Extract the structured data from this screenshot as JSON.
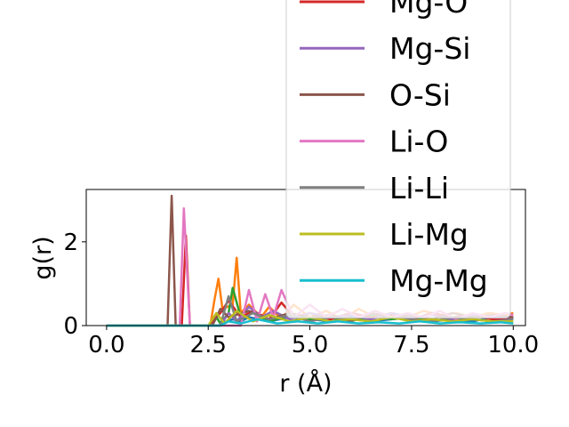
{
  "chart_data": {
    "type": "line",
    "xlabel": "r (Å)",
    "ylabel": "g(r)",
    "xlim": [
      -0.5,
      10.3
    ],
    "ylim": [
      0,
      3.25
    ],
    "x_ticks": [
      "0.0",
      "2.5",
      "5.0",
      "7.5",
      "10.0"
    ],
    "x_tick_values": [
      0,
      2.5,
      5,
      7.5,
      10
    ],
    "y_ticks": [
      "0",
      "2"
    ],
    "y_tick_values": [
      0,
      2
    ],
    "grid": false,
    "legend_placement": "upper right, extending above the plot area",
    "series": [
      {
        "name": "",
        "color": "#1f77b4",
        "x": [
          0,
          2.5,
          2.6,
          2.7,
          2.8,
          3.1,
          3.3,
          3.5,
          4.0,
          4.5,
          5.0,
          5.5,
          6.0,
          6.5,
          7.0,
          7.5,
          8.0,
          8.5,
          9.0,
          9.5,
          10.0
        ],
        "y": [
          0,
          0,
          0.05,
          0.2,
          0.05,
          0.15,
          0.1,
          0.2,
          0.1,
          0.2,
          0.15,
          0.1,
          0.2,
          0.1,
          0.15,
          0.2,
          0.1,
          0.15,
          0.1,
          0.2,
          0.15
        ]
      },
      {
        "name": "",
        "color": "#ff7f0e",
        "x": [
          0,
          2.55,
          2.65,
          2.75,
          2.85,
          3.1,
          3.2,
          3.3,
          3.5,
          3.8,
          4.0,
          4.3,
          4.6,
          5.0,
          5.4,
          5.8,
          6.2,
          6.6,
          7.0,
          7.4,
          7.8,
          8.2,
          8.6,
          9.0,
          9.4,
          9.8,
          10.0
        ],
        "y": [
          0,
          0,
          0.6,
          1.12,
          0.4,
          0.5,
          1.62,
          0.3,
          0.5,
          0.2,
          0.45,
          0.15,
          0.5,
          0.2,
          0.35,
          0.15,
          0.4,
          0.2,
          0.3,
          0.2,
          0.35,
          0.25,
          0.3,
          0.2,
          0.3,
          0.25,
          0.3
        ]
      },
      {
        "name": "",
        "color": "#2ca02c",
        "x": [
          0,
          2.6,
          2.7,
          2.8,
          3.0,
          3.1,
          3.3,
          3.6,
          4.0,
          4.5,
          5.0,
          5.5,
          6.0,
          6.5,
          7.0,
          7.5,
          8.0,
          8.5,
          9.0,
          9.5,
          10.0
        ],
        "y": [
          0,
          0,
          0.2,
          0.05,
          0.3,
          0.9,
          0.2,
          0.3,
          0.1,
          0.25,
          0.15,
          0.2,
          0.1,
          0.25,
          0.15,
          0.2,
          0.1,
          0.2,
          0.15,
          0.1,
          0.2
        ]
      },
      {
        "name": "Mg-O",
        "color": "#d62728",
        "x": [
          0,
          1.85,
          1.95,
          2.05,
          2.5,
          2.8,
          3.0,
          3.3,
          3.6,
          4.0,
          4.3,
          4.6,
          5.0,
          5.5,
          6.0,
          6.5,
          7.0,
          7.5,
          8.0,
          8.5,
          9.0,
          9.5,
          10.0
        ],
        "y": [
          0,
          0,
          2.15,
          0,
          0,
          0.3,
          0.6,
          0.2,
          0.35,
          0.15,
          0.55,
          0.2,
          0.3,
          0.15,
          0.3,
          0.2,
          0.25,
          0.15,
          0.3,
          0.2,
          0.25,
          0.15,
          0.2
        ]
      },
      {
        "name": "Mg-Si",
        "color": "#9467bd",
        "x": [
          0,
          2.8,
          3.0,
          3.2,
          3.5,
          3.8,
          4.1,
          4.5,
          5.0,
          5.5,
          6.0,
          6.5,
          7.0,
          7.5,
          8.0,
          8.5,
          9.0,
          9.5,
          10.0
        ],
        "y": [
          0,
          0,
          0.3,
          0.1,
          0.45,
          0.2,
          0.35,
          0.15,
          0.3,
          0.2,
          0.25,
          0.15,
          0.3,
          0.2,
          0.25,
          0.15,
          0.25,
          0.2,
          0.2
        ]
      },
      {
        "name": "O-Si",
        "color": "#8c564b",
        "x": [
          0,
          1.5,
          1.6,
          1.7,
          2.6,
          2.8,
          3.0,
          3.5,
          4.0,
          4.5,
          5.0,
          5.5,
          6.0,
          6.5,
          7.0,
          7.5,
          8.0,
          8.5,
          9.0,
          9.5,
          10.0
        ],
        "y": [
          0,
          0,
          3.1,
          0,
          0,
          0.4,
          0.2,
          0.35,
          0.15,
          0.3,
          0.2,
          0.25,
          0.1,
          0.3,
          0.2,
          0.25,
          0.15,
          0.3,
          0.2,
          0.25,
          0.2
        ]
      },
      {
        "name": "Li-O",
        "color": "#e377c2",
        "x": [
          0,
          1.8,
          1.9,
          2.05,
          3.3,
          3.5,
          3.7,
          3.9,
          4.1,
          4.3,
          4.6,
          5.0,
          5.4,
          5.8,
          6.2,
          6.6,
          7.0,
          7.4,
          7.8,
          8.2,
          8.6,
          9.0,
          9.4,
          9.8,
          10.0
        ],
        "y": [
          0,
          0,
          2.8,
          0,
          0,
          0.85,
          0.1,
          0.75,
          0.2,
          0.85,
          0.2,
          0.5,
          0.2,
          0.4,
          0.2,
          0.35,
          0.2,
          0.3,
          0.2,
          0.35,
          0.15,
          0.3,
          0.2,
          0.3,
          0.25
        ]
      },
      {
        "name": "Li-Li",
        "color": "#7f7f7f",
        "x": [
          0,
          2.8,
          3.0,
          3.2,
          3.6,
          4.0,
          4.5,
          5.0,
          5.5,
          6.0,
          6.5,
          7.0,
          7.5,
          8.0,
          8.5,
          9.0,
          9.5,
          10.0
        ],
        "y": [
          0,
          0,
          0.7,
          0.1,
          0.3,
          0.15,
          0.25,
          0.1,
          0.2,
          0.15,
          0.1,
          0.2,
          0.15,
          0.1,
          0.2,
          0.15,
          0.1,
          0.15
        ]
      },
      {
        "name": "Li-Mg",
        "color": "#bcbd22",
        "x": [
          0,
          2.5,
          2.7,
          2.9,
          3.2,
          3.6,
          4.0,
          4.5,
          5.0,
          5.5,
          6.0,
          6.5,
          7.0,
          7.5,
          8.0,
          8.5,
          9.0,
          9.5,
          10.0
        ],
        "y": [
          0,
          0,
          0.3,
          0.05,
          0.35,
          0.1,
          0.25,
          0.1,
          0.2,
          0.1,
          0.15,
          0.1,
          0.2,
          0.1,
          0.15,
          0.1,
          0.15,
          0.1,
          0.1
        ]
      },
      {
        "name": "Mg-Mg",
        "color": "#17becf",
        "x": [
          0,
          2.8,
          3.0,
          3.3,
          3.7,
          4.2,
          4.7,
          5.2,
          5.7,
          6.2,
          6.7,
          7.2,
          7.7,
          8.2,
          8.7,
          9.2,
          9.7,
          10.0
        ],
        "y": [
          0,
          0,
          0.1,
          0.05,
          0.15,
          0.05,
          0.1,
          0.05,
          0.1,
          0.05,
          0.08,
          0.05,
          0.1,
          0.05,
          0.08,
          0.05,
          0.08,
          0.05
        ]
      }
    ]
  }
}
